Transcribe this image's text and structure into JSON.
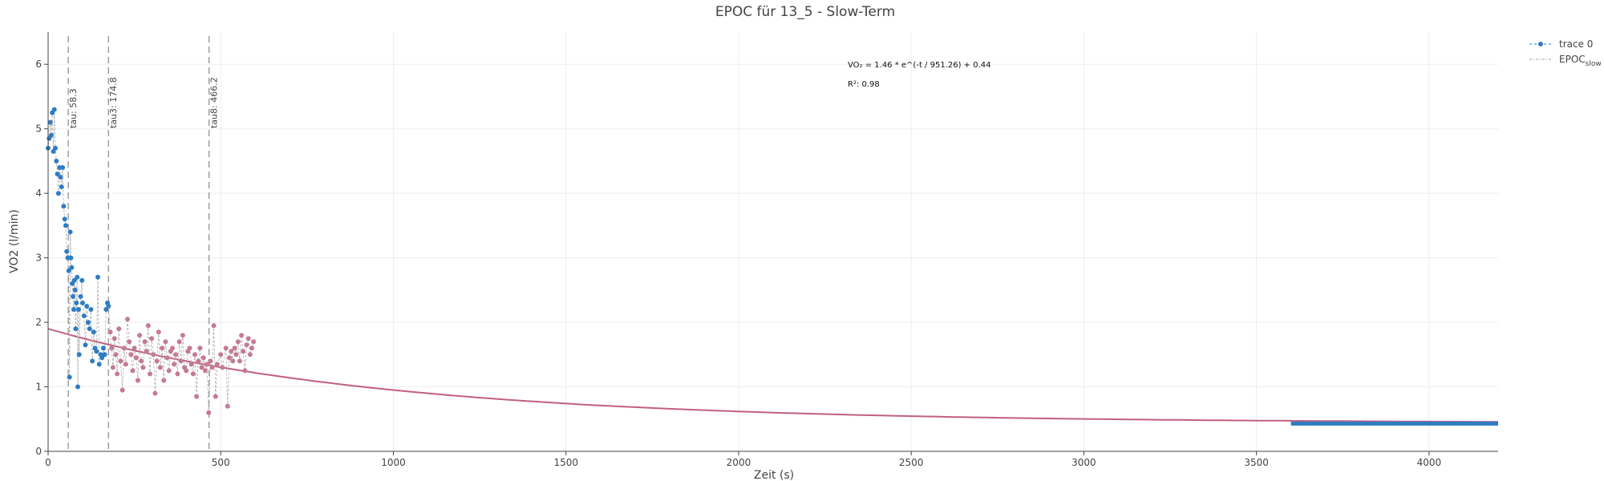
{
  "chart_data": {
    "type": "scatter",
    "title": "EPOC für 13_5 - Slow-Term",
    "xlabel": "Zeit (s)",
    "ylabel": "VO2 (l/min)",
    "xlim": [
      0,
      4200
    ],
    "ylim": [
      0,
      6.5
    ],
    "x_ticks": [
      0,
      500,
      1000,
      1500,
      2000,
      2500,
      3000,
      3500,
      4000
    ],
    "y_ticks": [
      0,
      1,
      2,
      3,
      4,
      5,
      6
    ],
    "grid": true,
    "legend_position": "top-right",
    "legend": [
      "trace 0",
      "EPOC",
      "slow"
    ],
    "vlines": [
      {
        "x": 58.3,
        "label": "tau: 58.3"
      },
      {
        "x": 174.8,
        "label": "tau3: 174.8"
      },
      {
        "x": 466.2,
        "label": "tau8: 466.2"
      }
    ],
    "annotations": [
      "VO₂ = 1.46 * e^(-t / 951.26) + 0.44",
      "R²: 0.98"
    ],
    "fit": {
      "a": 1.46,
      "tau": 951.26,
      "c": 0.44,
      "x_range": [
        0,
        4200
      ]
    },
    "series": [
      {
        "color": "#2e7dc4",
        "points": [
          [
            0,
            4.7
          ],
          [
            3,
            4.85
          ],
          [
            6,
            5.1
          ],
          [
            9,
            4.9
          ],
          [
            12,
            5.25
          ],
          [
            15,
            4.65
          ],
          [
            18,
            5.3
          ],
          [
            21,
            4.7
          ],
          [
            24,
            4.5
          ],
          [
            27,
            4.3
          ],
          [
            30,
            4.0
          ],
          [
            33,
            4.4
          ],
          [
            36,
            4.25
          ],
          [
            39,
            4.1
          ],
          [
            42,
            4.4
          ],
          [
            45,
            3.8
          ],
          [
            48,
            3.6
          ],
          [
            51,
            3.5
          ],
          [
            54,
            3.1
          ],
          [
            57,
            3.0
          ],
          [
            60,
            2.8
          ],
          [
            62,
            1.15
          ],
          [
            64,
            3.4
          ],
          [
            66,
            3.0
          ],
          [
            68,
            2.85
          ],
          [
            70,
            2.6
          ],
          [
            72,
            2.4
          ],
          [
            74,
            2.2
          ],
          [
            76,
            2.65
          ],
          [
            78,
            2.5
          ],
          [
            80,
            1.9
          ],
          [
            82,
            2.3
          ],
          [
            84,
            2.7
          ],
          [
            86,
            1.0
          ],
          [
            88,
            2.2
          ],
          [
            90,
            1.5
          ],
          [
            94,
            2.4
          ],
          [
            98,
            2.65
          ],
          [
            100,
            2.3
          ],
          [
            104,
            2.1
          ],
          [
            108,
            1.65
          ],
          [
            112,
            2.25
          ],
          [
            116,
            2.0
          ],
          [
            120,
            1.9
          ],
          [
            124,
            2.2
          ],
          [
            128,
            1.4
          ],
          [
            132,
            1.85
          ],
          [
            136,
            1.6
          ],
          [
            140,
            1.55
          ],
          [
            144,
            2.7
          ],
          [
            148,
            1.35
          ],
          [
            152,
            1.5
          ],
          [
            156,
            1.45
          ],
          [
            160,
            1.6
          ],
          [
            164,
            1.5
          ],
          [
            168,
            2.2
          ],
          [
            172,
            2.3
          ],
          [
            175,
            2.25
          ]
        ],
        "tail": {
          "x": [
            3600,
            4200
          ],
          "y": 0.43
        }
      },
      {
        "color": "#c47a95",
        "points": [
          [
            180,
            1.85
          ],
          [
            184,
            1.6
          ],
          [
            188,
            1.3
          ],
          [
            192,
            1.75
          ],
          [
            196,
            1.5
          ],
          [
            200,
            1.2
          ],
          [
            205,
            1.9
          ],
          [
            210,
            1.4
          ],
          [
            215,
            0.95
          ],
          [
            220,
            1.6
          ],
          [
            225,
            1.35
          ],
          [
            230,
            2.05
          ],
          [
            235,
            1.7
          ],
          [
            240,
            1.5
          ],
          [
            245,
            1.25
          ],
          [
            250,
            1.6
          ],
          [
            255,
            1.45
          ],
          [
            260,
            1.1
          ],
          [
            265,
            1.8
          ],
          [
            270,
            1.4
          ],
          [
            275,
            1.3
          ],
          [
            280,
            1.7
          ],
          [
            285,
            1.55
          ],
          [
            290,
            1.95
          ],
          [
            295,
            1.2
          ],
          [
            300,
            1.75
          ],
          [
            305,
            1.5
          ],
          [
            310,
            0.9
          ],
          [
            315,
            1.4
          ],
          [
            320,
            1.85
          ],
          [
            325,
            1.3
          ],
          [
            330,
            1.6
          ],
          [
            335,
            1.1
          ],
          [
            340,
            1.7
          ],
          [
            345,
            1.45
          ],
          [
            350,
            1.25
          ],
          [
            355,
            1.55
          ],
          [
            360,
            1.6
          ],
          [
            365,
            1.35
          ],
          [
            370,
            1.5
          ],
          [
            375,
            1.2
          ],
          [
            380,
            1.7
          ],
          [
            385,
            1.4
          ],
          [
            390,
            1.8
          ],
          [
            395,
            1.3
          ],
          [
            400,
            1.25
          ],
          [
            405,
            1.55
          ],
          [
            410,
            1.6
          ],
          [
            415,
            1.35
          ],
          [
            420,
            1.2
          ],
          [
            425,
            1.5
          ],
          [
            430,
            0.85
          ],
          [
            435,
            1.4
          ],
          [
            440,
            1.6
          ],
          [
            445,
            1.3
          ],
          [
            450,
            1.45
          ],
          [
            455,
            1.25
          ],
          [
            460,
            1.35
          ],
          [
            465,
            0.6
          ],
          [
            470,
            1.4
          ],
          [
            475,
            1.3
          ],
          [
            480,
            1.95
          ],
          [
            485,
            0.85
          ],
          [
            490,
            1.35
          ],
          [
            500,
            1.5
          ],
          [
            505,
            1.3
          ],
          [
            515,
            1.6
          ],
          [
            520,
            0.7
          ],
          [
            525,
            1.45
          ],
          [
            530,
            1.55
          ],
          [
            535,
            1.4
          ],
          [
            540,
            1.6
          ],
          [
            545,
            1.5
          ],
          [
            550,
            1.7
          ],
          [
            555,
            1.4
          ],
          [
            560,
            1.8
          ],
          [
            565,
            1.55
          ],
          [
            570,
            1.25
          ],
          [
            575,
            1.65
          ],
          [
            580,
            1.75
          ],
          [
            585,
            1.5
          ],
          [
            590,
            1.6
          ],
          [
            595,
            1.7
          ]
        ]
      }
    ]
  }
}
